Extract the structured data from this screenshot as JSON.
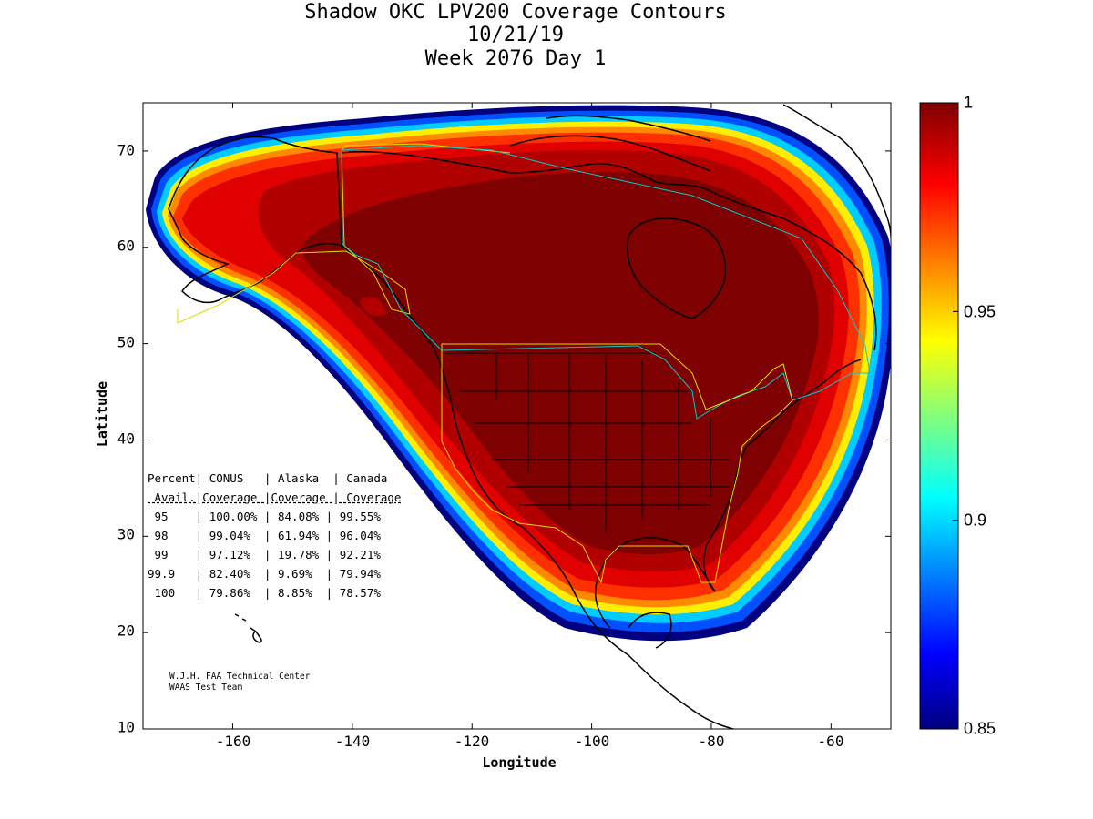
{
  "title": {
    "line1": "Shadow OKC LPV200 Coverage Contours",
    "line2": "10/21/19",
    "line3": "Week 2076 Day 1"
  },
  "axes": {
    "xlabel": "Longitude",
    "ylabel": "Latitude",
    "xlim": [
      -175,
      -50
    ],
    "ylim": [
      10,
      75
    ],
    "xticks": [
      "-160",
      "-140",
      "-120",
      "-100",
      "-80",
      "-60"
    ],
    "yticks": [
      "10",
      "20",
      "30",
      "40",
      "50",
      "60",
      "70"
    ]
  },
  "colorbar": {
    "range": [
      0.85,
      1.0
    ],
    "ticks": [
      "0.85",
      "0.9",
      "0.95",
      "1"
    ],
    "colormap": "jet"
  },
  "table": {
    "header1": "Percent| CONUS   | Alaska  | Canada",
    "header2": " Avail.|Coverage |Coverage | Coverage",
    "rows": [
      {
        "pct": "95",
        "conus": "100.00%",
        "alaska": "84.08%",
        "canada": "99.55%"
      },
      {
        "pct": "98",
        "conus": "99.04%",
        "alaska": "61.94%",
        "canada": "96.04%"
      },
      {
        "pct": "99",
        "conus": "97.12%",
        "alaska": "19.78%",
        "canada": "92.21%"
      },
      {
        "pct": "99.9",
        "conus": "82.40%",
        "alaska": "9.69%",
        "canada": "79.94%"
      },
      {
        "pct": "100",
        "conus": "79.86%",
        "alaska": "8.85%",
        "canada": "78.57%"
      }
    ]
  },
  "credit": {
    "line1": "W.J.H. FAA Technical Center",
    "line2": "WAAS Test Team"
  },
  "colors": {
    "deep": "#7f0000",
    "red_dark": "#b00000",
    "red": "#e00000",
    "red_orange": "#ff2a00",
    "orange": "#ff6a00",
    "orange_yellow": "#ffaa00",
    "yellow": "#ffee00",
    "cyan": "#00ccff",
    "blue": "#0050ff",
    "navy": "#000080"
  }
}
